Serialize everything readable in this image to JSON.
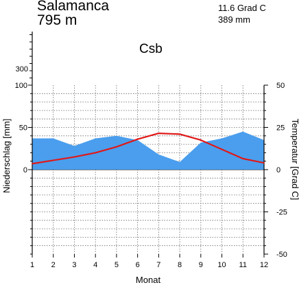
{
  "header": {
    "station": "Salamanca",
    "elevation": "795 m",
    "annual_temperature": "11.6 Grad C",
    "annual_precipitation": "389 mm",
    "climate_class": "Csb"
  },
  "colors": {
    "precipitation_fill": "#4a9eed",
    "temperature_line": "#e01818",
    "grid": "#666666",
    "axis": "#000000"
  },
  "chart_data": {
    "type": "area",
    "x": [
      1,
      2,
      3,
      4,
      5,
      6,
      7,
      8,
      9,
      10,
      11,
      12
    ],
    "xlabel": "Monat",
    "ylabel_left": "Niederschlag [mm]",
    "ylabel_right": "Temperatur [Grad C]",
    "ylim_left": [
      -100,
      100
    ],
    "ylim_right": [
      -50,
      50
    ],
    "left_ticks": [
      0,
      50,
      100
    ],
    "right_ticks": [
      "-50",
      "-25",
      "0",
      "25",
      "50"
    ],
    "upper_scale_label": "300",
    "grid": true,
    "series": [
      {
        "type": "area",
        "axis": "left",
        "values": [
          37,
          37,
          28,
          37,
          40,
          35,
          18,
          9,
          32,
          37,
          45,
          35
        ]
      },
      {
        "type": "line",
        "axis": "right",
        "values": [
          3.5,
          5.5,
          7.5,
          10,
          13.5,
          18,
          21.5,
          21,
          17.5,
          12,
          6.5,
          4
        ]
      }
    ]
  }
}
